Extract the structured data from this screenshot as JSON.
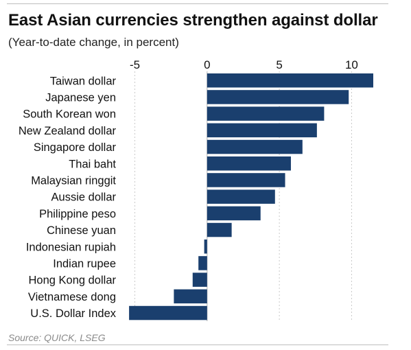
{
  "chart_data": {
    "type": "bar",
    "orientation": "horizontal",
    "title": "East Asian currencies strengthen against dollar",
    "subtitle": "(Year-to-date change, in percent)",
    "source": "Source: QUICK, LSEG",
    "categories": [
      "Taiwan dollar",
      "Japanese yen",
      "South Korean won",
      "New Zealand dollar",
      "Singapore dollar",
      "Thai baht",
      "Malaysian ringgit",
      "Aussie dollar",
      "Philippine peso",
      "Chinese yuan",
      "Indonesian rupiah",
      "Indian rupee",
      "Hong Kong dollar",
      "Vietnamese dong",
      "U.S. Dollar Index"
    ],
    "values": [
      11.5,
      9.8,
      8.1,
      7.6,
      6.6,
      5.8,
      5.4,
      4.7,
      3.7,
      1.7,
      -0.2,
      -0.6,
      -1.0,
      -2.3,
      -5.4
    ],
    "xlim": [
      -5.5,
      11.5
    ],
    "xticks": [
      -5,
      0,
      5,
      10
    ],
    "xtick_labels": [
      "-5",
      "0",
      "5",
      "10"
    ],
    "grid": true,
    "bar_color": "#1a3f6e",
    "gridline_color": "#c8c8c8",
    "zero_line_color": "#bdbdbd"
  }
}
